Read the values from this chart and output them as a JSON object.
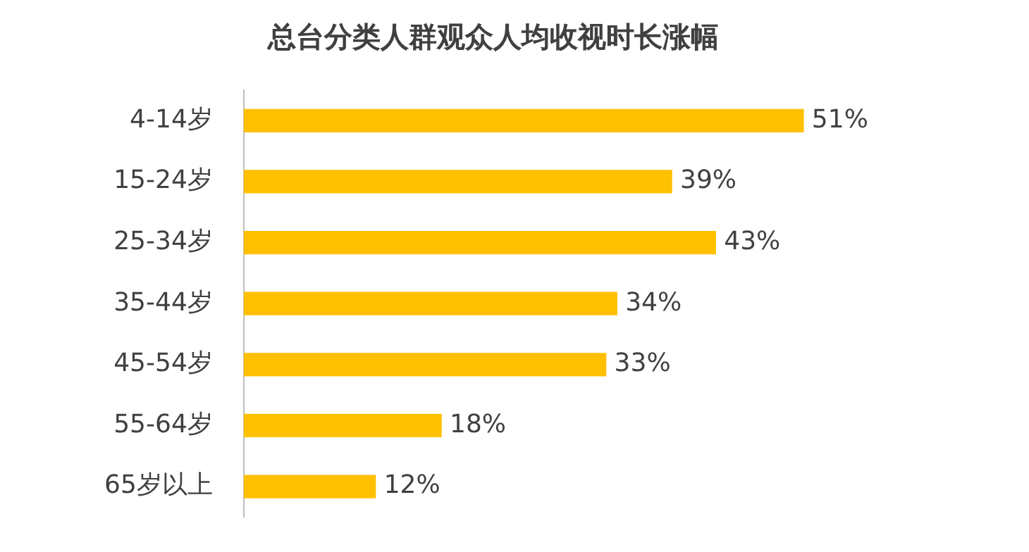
{
  "chart_data": {
    "type": "bar",
    "orientation": "horizontal",
    "title": "总台分类人群观众人均收视时长涨幅",
    "categories": [
      "4-14岁",
      "15-24岁",
      "25-34岁",
      "35-44岁",
      "45-54岁",
      "55-64岁",
      "65岁以上"
    ],
    "values": [
      51,
      39,
      43,
      34,
      33,
      18,
      12
    ],
    "value_labels": [
      "51%",
      "39%",
      "43%",
      "34%",
      "33%",
      "18%",
      "12%"
    ],
    "color": "#ffc000"
  }
}
